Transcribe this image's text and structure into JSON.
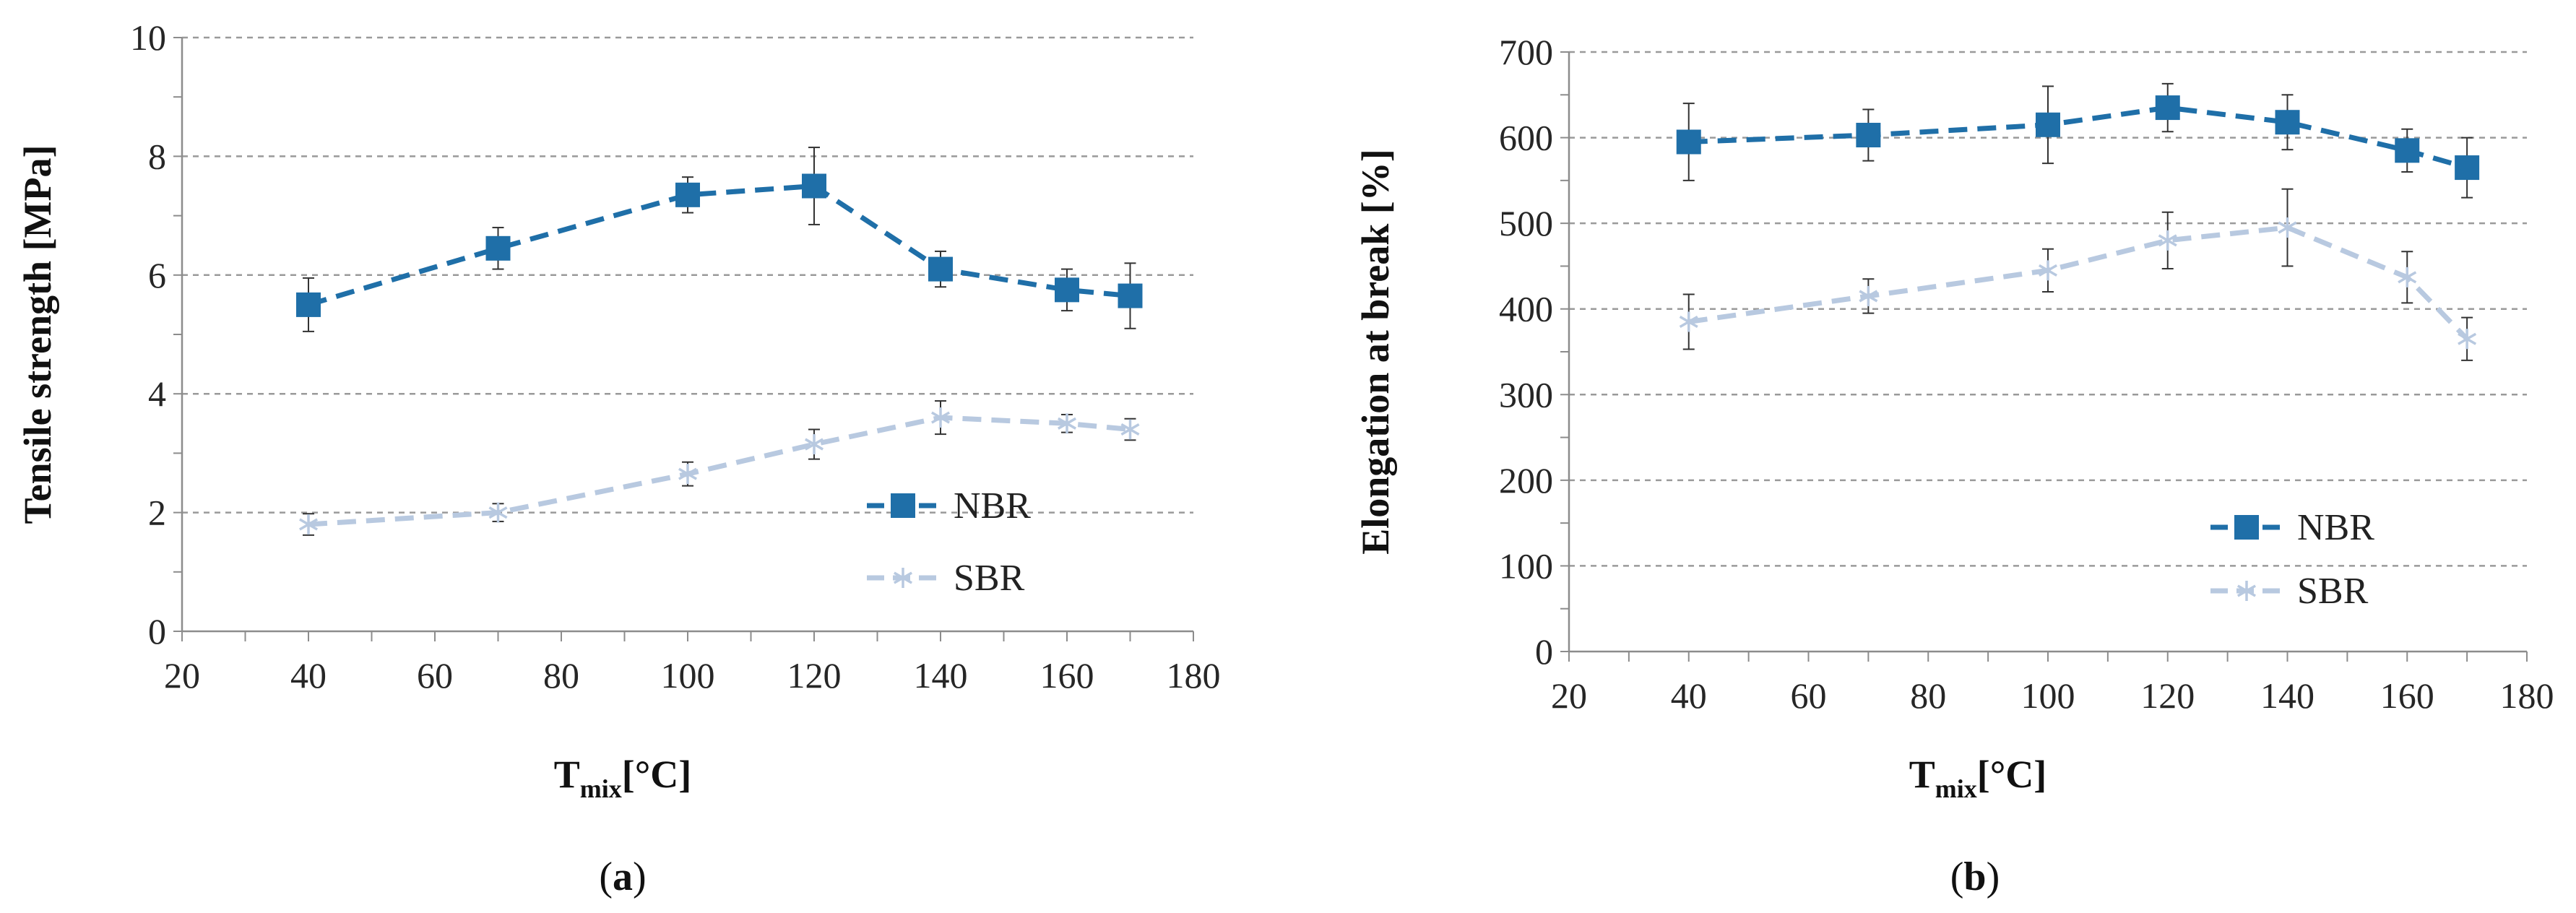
{
  "chart_data": [
    {
      "type": "line",
      "panel_label": "a",
      "title": "",
      "xlabel_main": "T",
      "xlabel_sub": "mix",
      "xlabel_unit": "[°C]",
      "ylabel": "Tensile strength [MPa]",
      "xlim": [
        20,
        180
      ],
      "ylim": [
        0,
        10
      ],
      "x_ticks": [
        "20",
        "40",
        "60",
        "80",
        "100",
        "120",
        "140",
        "160",
        "180"
      ],
      "y_ticks": [
        "0",
        "2",
        "4",
        "6",
        "8",
        "10"
      ],
      "legend_position": "bottom-right",
      "x": [
        40,
        70,
        100,
        120,
        140,
        160,
        170
      ],
      "series": [
        {
          "name": "NBR",
          "color": "#1f6fa8",
          "marker": "square",
          "values": [
            5.5,
            6.45,
            7.35,
            7.5,
            6.1,
            5.75,
            5.65
          ],
          "errors": [
            0.45,
            0.35,
            0.3,
            0.65,
            0.3,
            0.35,
            0.55
          ]
        },
        {
          "name": "SBR",
          "color": "#b8c9e0",
          "marker": "asterisk",
          "values": [
            1.8,
            2.0,
            2.65,
            3.15,
            3.6,
            3.5,
            3.4
          ],
          "errors": [
            0.18,
            0.15,
            0.2,
            0.25,
            0.28,
            0.15,
            0.18
          ]
        }
      ]
    },
    {
      "type": "line",
      "panel_label": "b",
      "title": "",
      "xlabel_main": "T",
      "xlabel_sub": "mix",
      "xlabel_unit": "[°C]",
      "ylabel": "Elongation at break [%]",
      "xlim": [
        20,
        180
      ],
      "ylim": [
        0,
        700
      ],
      "x_ticks": [
        "20",
        "40",
        "60",
        "80",
        "100",
        "120",
        "140",
        "160",
        "180"
      ],
      "y_ticks": [
        "0",
        "100",
        "200",
        "300",
        "400",
        "500",
        "600",
        "700"
      ],
      "legend_position": "bottom-right",
      "x": [
        40,
        70,
        100,
        120,
        140,
        160,
        170
      ],
      "series": [
        {
          "name": "NBR",
          "color": "#1f6fa8",
          "marker": "square",
          "values": [
            595,
            603,
            615,
            635,
            618,
            585,
            565
          ],
          "errors": [
            45,
            30,
            45,
            28,
            32,
            25,
            35
          ]
        },
        {
          "name": "SBR",
          "color": "#b8c9e0",
          "marker": "asterisk",
          "values": [
            385,
            415,
            445,
            480,
            495,
            437,
            365
          ],
          "errors": [
            32,
            20,
            25,
            33,
            45,
            30,
            25
          ]
        }
      ]
    }
  ]
}
